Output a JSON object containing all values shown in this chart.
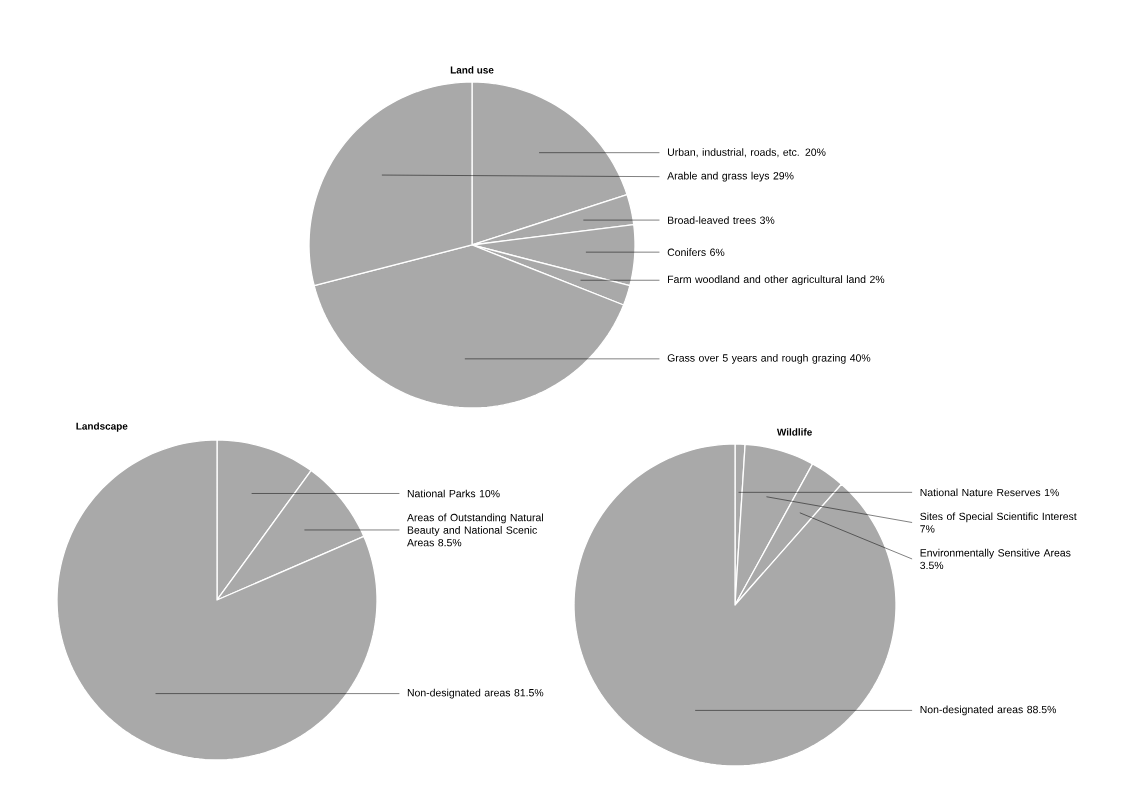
{
  "chart_data": [
    {
      "type": "pie",
      "title": "Land use",
      "categories": [
        "Urban, industrial, roads, etc.",
        "Broad-leaved trees",
        "Conifers",
        "Farm woodland and other agricultural land",
        "Grass over 5 years and rough grazing",
        "Arable and grass leys"
      ],
      "values": [
        20,
        3,
        6,
        2,
        40,
        29
      ],
      "value_labels": [
        "20%",
        "3%",
        "6%",
        "2%",
        "40%",
        "29%"
      ],
      "colors": [
        "#a9a9a9",
        "#a9a9a9",
        "#a9a9a9",
        "#a9a9a9",
        "#a9a9a9",
        "#a9a9a9"
      ]
    },
    {
      "type": "pie",
      "title": "Landscape",
      "categories": [
        "National Parks",
        "Areas of Outstanding Natural Beauty and National Scenic Areas",
        "Non-designated areas"
      ],
      "values": [
        10,
        8.5,
        81.5
      ],
      "value_labels": [
        "10%",
        "8.5%",
        "81.5%"
      ],
      "colors": [
        "#a9a9a9",
        "#a9a9a9",
        "#a9a9a9"
      ]
    },
    {
      "type": "pie",
      "title": "Wildlife",
      "categories": [
        "National Nature Reserves",
        "Sites of Special Scientific Interest",
        "Environmentally Sensitive Areas",
        "Non-designated areas"
      ],
      "values": [
        1,
        7,
        3.5,
        88.5
      ],
      "value_labels": [
        "1%",
        "7%",
        "3.5%",
        "88.5%"
      ],
      "colors": [
        "#a9a9a9",
        "#a9a9a9",
        "#a9a9a9",
        "#a9a9a9"
      ]
    }
  ]
}
